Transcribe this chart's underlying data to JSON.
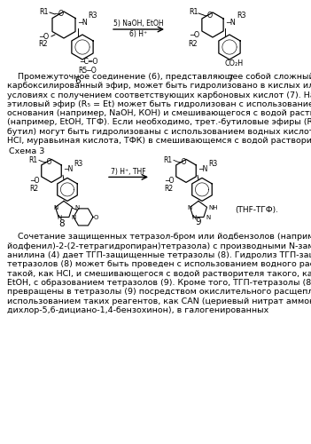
{
  "bg_color": "#ffffff",
  "text_color": "#000000",
  "body_fontsize": 6.8,
  "small_fontsize": 5.8,
  "paragraph1_lines": [
    "    Промежуточное соединение (6), представляющее собой сложный",
    "карбоксилированный эфир, может быть гидролизовано в кислых или основных",
    "условиях с получением соответствующих карбоновых кислот (7). Например,",
    "этиловый эфир (R₅ = Et) может быть гидролизован с использованием водного",
    "основания (например, NaOH, КОН) и смешивающегося с водой растворителя",
    "(например, EtOH, ТГФ). Если необходимо, трет.-бутиловые эфиры (R₅ = трет.-",
    "бутил) могут быть гидролизованы с использованием водных кислот (например,",
    "HCl, муравьиная кислота, ТФК) в смешивающемся с водой растворителе."
  ],
  "schema3_label": "Схема 3",
  "paragraph2_lines": [
    "    Сочетание защищенных тетразол-бром или йодбензолов (например, 5-(3-",
    "йодфенил)-2-(2-тетрагидропиран)тетразола) с производными N-замещенного",
    "анилина (4) дает ТГП-защищенные тетразолы (8). Гидролиз ТГП-защищенных",
    "тетразолов (8) может быть проведен с использованием водного раствора кислоты",
    "такой, как HCl, и смешивающегося с водой растворителя такого, как ТГФ или",
    "EtOH, с образованием тетразолов (9). Кроме того, ТГП-тетразолы (8) могут быть",
    "превращены в тетразолы (9) посредством окислительного расщепления с",
    "использованием таких реагентов, как CAN (цериевый нитрат аммония) и DDQ (2,3-",
    "дихлор-5,6-дициано-1,4-бензохинон), в галогенированных"
  ]
}
